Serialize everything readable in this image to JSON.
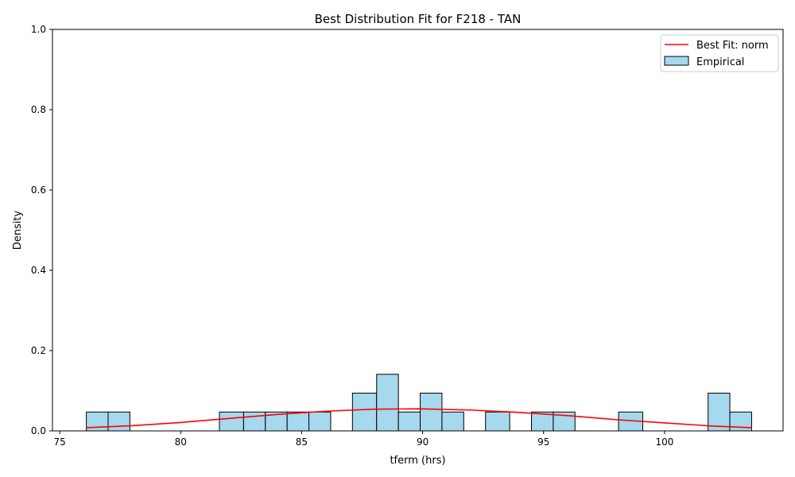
{
  "chart_data": {
    "type": "bar",
    "title": "Best Distribution Fit for F218 - TAN",
    "xlabel": "tferm (hrs)",
    "ylabel": "Density",
    "xlim": [
      74.7,
      104.9
    ],
    "ylim": [
      0,
      1.0
    ],
    "x_ticks": [
      75,
      80,
      85,
      90,
      95,
      100
    ],
    "y_ticks": [
      0.0,
      0.2,
      0.4,
      0.6,
      0.8,
      1.0
    ],
    "x_tick_labels": [
      "75",
      "80",
      "85",
      "90",
      "95",
      "100"
    ],
    "y_tick_labels": [
      "0.0",
      "0.2",
      "0.4",
      "0.6",
      "0.8",
      "1.0"
    ],
    "grid": false,
    "legend_position": "top-right",
    "series": [
      {
        "name": "Empirical",
        "kind": "histogram",
        "color": "#a6d8ee",
        "edge_color": "#000000",
        "bins": [
          {
            "x0": 76.1,
            "x1": 77.0,
            "density": 0.047
          },
          {
            "x0": 77.0,
            "x1": 77.9,
            "density": 0.047
          },
          {
            "x0": 81.6,
            "x1": 82.6,
            "density": 0.047
          },
          {
            "x0": 82.6,
            "x1": 83.5,
            "density": 0.047
          },
          {
            "x0": 83.5,
            "x1": 84.4,
            "density": 0.047
          },
          {
            "x0": 84.4,
            "x1": 85.3,
            "density": 0.047
          },
          {
            "x0": 85.3,
            "x1": 86.2,
            "density": 0.047
          },
          {
            "x0": 87.1,
            "x1": 88.1,
            "density": 0.094
          },
          {
            "x0": 88.1,
            "x1": 89.0,
            "density": 0.141
          },
          {
            "x0": 89.0,
            "x1": 89.9,
            "density": 0.047
          },
          {
            "x0": 89.9,
            "x1": 90.8,
            "density": 0.094
          },
          {
            "x0": 90.8,
            "x1": 91.7,
            "density": 0.047
          },
          {
            "x0": 92.6,
            "x1": 93.6,
            "density": 0.047
          },
          {
            "x0": 94.5,
            "x1": 95.4,
            "density": 0.047
          },
          {
            "x0": 95.4,
            "x1": 96.3,
            "density": 0.047
          },
          {
            "x0": 98.1,
            "x1": 99.1,
            "density": 0.047
          },
          {
            "x0": 101.8,
            "x1": 102.7,
            "density": 0.094
          },
          {
            "x0": 102.7,
            "x1": 103.6,
            "density": 0.047
          }
        ]
      },
      {
        "name": "Best Fit: norm",
        "kind": "line",
        "color": "#ff0000",
        "points": [
          {
            "x": 76.1,
            "y": 0.008
          },
          {
            "x": 78.0,
            "y": 0.013
          },
          {
            "x": 80.0,
            "y": 0.021
          },
          {
            "x": 82.0,
            "y": 0.031
          },
          {
            "x": 84.0,
            "y": 0.041
          },
          {
            "x": 86.0,
            "y": 0.049
          },
          {
            "x": 88.0,
            "y": 0.054
          },
          {
            "x": 89.8,
            "y": 0.055
          },
          {
            "x": 92.0,
            "y": 0.052
          },
          {
            "x": 94.0,
            "y": 0.046
          },
          {
            "x": 96.0,
            "y": 0.038
          },
          {
            "x": 98.0,
            "y": 0.028
          },
          {
            "x": 100.0,
            "y": 0.02
          },
          {
            "x": 102.0,
            "y": 0.012
          },
          {
            "x": 103.6,
            "y": 0.008
          }
        ]
      }
    ]
  }
}
